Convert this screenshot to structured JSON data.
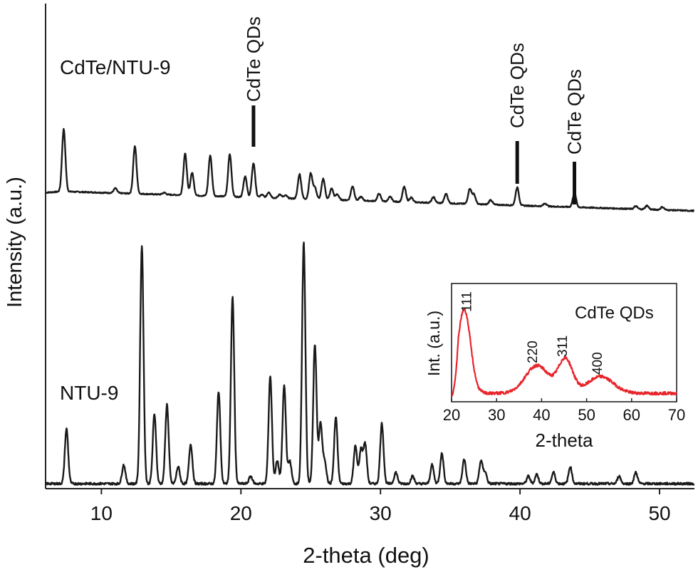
{
  "chart_data": [
    {
      "type": "line",
      "xlabel": "2-theta (deg)",
      "ylabel": "Intensity (a.u.)",
      "xlim": [
        6,
        52.5
      ],
      "x_ticks": [
        10,
        20,
        30,
        40,
        50
      ],
      "series": [
        {
          "name": "CdTe/NTU-9",
          "baseline": 0.6,
          "peaks": [
            [
              7.3,
              3.3
            ],
            [
              11.0,
              0.25
            ],
            [
              12.4,
              2.5
            ],
            [
              14.5,
              0.1
            ],
            [
              16.0,
              2.2
            ],
            [
              16.5,
              1.2
            ],
            [
              17.8,
              2.15
            ],
            [
              19.2,
              2.25
            ],
            [
              20.3,
              1.1
            ],
            [
              20.9,
              1.8
            ],
            [
              21.5,
              0.15
            ],
            [
              22.0,
              0.3
            ],
            [
              22.8,
              0.2
            ],
            [
              23.2,
              0.15
            ],
            [
              24.2,
              1.3
            ],
            [
              25.0,
              1.35
            ],
            [
              25.3,
              0.6
            ],
            [
              25.9,
              1.1
            ],
            [
              26.5,
              0.6
            ],
            [
              26.9,
              0.3
            ],
            [
              28.0,
              0.75
            ],
            [
              28.6,
              0.2
            ],
            [
              29.9,
              0.4
            ],
            [
              30.7,
              0.25
            ],
            [
              31.7,
              0.8
            ],
            [
              32.2,
              0.25
            ],
            [
              33.8,
              0.3
            ],
            [
              34.7,
              0.5
            ],
            [
              36.4,
              0.8
            ],
            [
              36.7,
              0.5
            ],
            [
              37.9,
              0.25
            ],
            [
              39.8,
              0.95
            ],
            [
              41.8,
              0.15
            ],
            [
              43.9,
              0.75
            ],
            [
              48.3,
              0.15
            ],
            [
              49.1,
              0.2
            ],
            [
              50.2,
              0.15
            ]
          ]
        },
        {
          "name": "NTU-9",
          "baseline": 0.15,
          "peaks": [
            [
              7.5,
              1.45
            ],
            [
              11.6,
              0.5
            ],
            [
              12.9,
              6.3
            ],
            [
              13.8,
              1.85
            ],
            [
              14.7,
              2.1
            ],
            [
              15.5,
              0.45
            ],
            [
              16.4,
              1.05
            ],
            [
              18.4,
              2.45
            ],
            [
              19.4,
              4.95
            ],
            [
              20.7,
              0.2
            ],
            [
              22.1,
              2.85
            ],
            [
              22.6,
              0.6
            ],
            [
              23.1,
              2.6
            ],
            [
              23.5,
              0.6
            ],
            [
              24.5,
              6.4
            ],
            [
              25.3,
              3.7
            ],
            [
              25.7,
              1.6
            ],
            [
              26.0,
              0.6
            ],
            [
              26.8,
              1.75
            ],
            [
              28.2,
              1.0
            ],
            [
              28.6,
              0.9
            ],
            [
              28.9,
              1.05
            ],
            [
              30.1,
              1.6
            ],
            [
              31.1,
              0.3
            ],
            [
              32.3,
              0.2
            ],
            [
              33.7,
              0.5
            ],
            [
              34.4,
              0.8
            ],
            [
              36.0,
              0.65
            ],
            [
              37.2,
              0.6
            ],
            [
              37.5,
              0.3
            ],
            [
              40.6,
              0.2
            ],
            [
              41.2,
              0.25
            ],
            [
              42.4,
              0.3
            ],
            [
              43.6,
              0.45
            ],
            [
              47.1,
              0.2
            ],
            [
              48.3,
              0.3
            ]
          ]
        }
      ],
      "annotations": [
        {
          "text": "CdTe QDs",
          "x": 20.9
        },
        {
          "text": "CdTe QDs",
          "x": 39.8
        },
        {
          "text": "CdTe QDs",
          "x": 43.9
        }
      ]
    },
    {
      "type": "line",
      "title": "CdTe QDs",
      "xlabel": "2-theta",
      "ylabel": "Int. (a.u.)",
      "xlim": [
        20,
        70
      ],
      "x_ticks": [
        20,
        30,
        40,
        50,
        60,
        70
      ],
      "series": [
        {
          "name": "CdTe QDs",
          "baseline": 0.05,
          "peaks": [
            [
              22.8,
              1.0,
              1.4
            ],
            [
              39.0,
              0.33,
              2.6
            ],
            [
              45.3,
              0.4,
              1.6
            ],
            [
              53.1,
              0.2,
              2.8
            ]
          ]
        }
      ],
      "peak_labels": [
        {
          "text": "111",
          "x": 22.8
        },
        {
          "text": "220",
          "x": 39.0
        },
        {
          "text": "311",
          "x": 45.3
        },
        {
          "text": "400",
          "x": 53.1
        }
      ]
    }
  ]
}
